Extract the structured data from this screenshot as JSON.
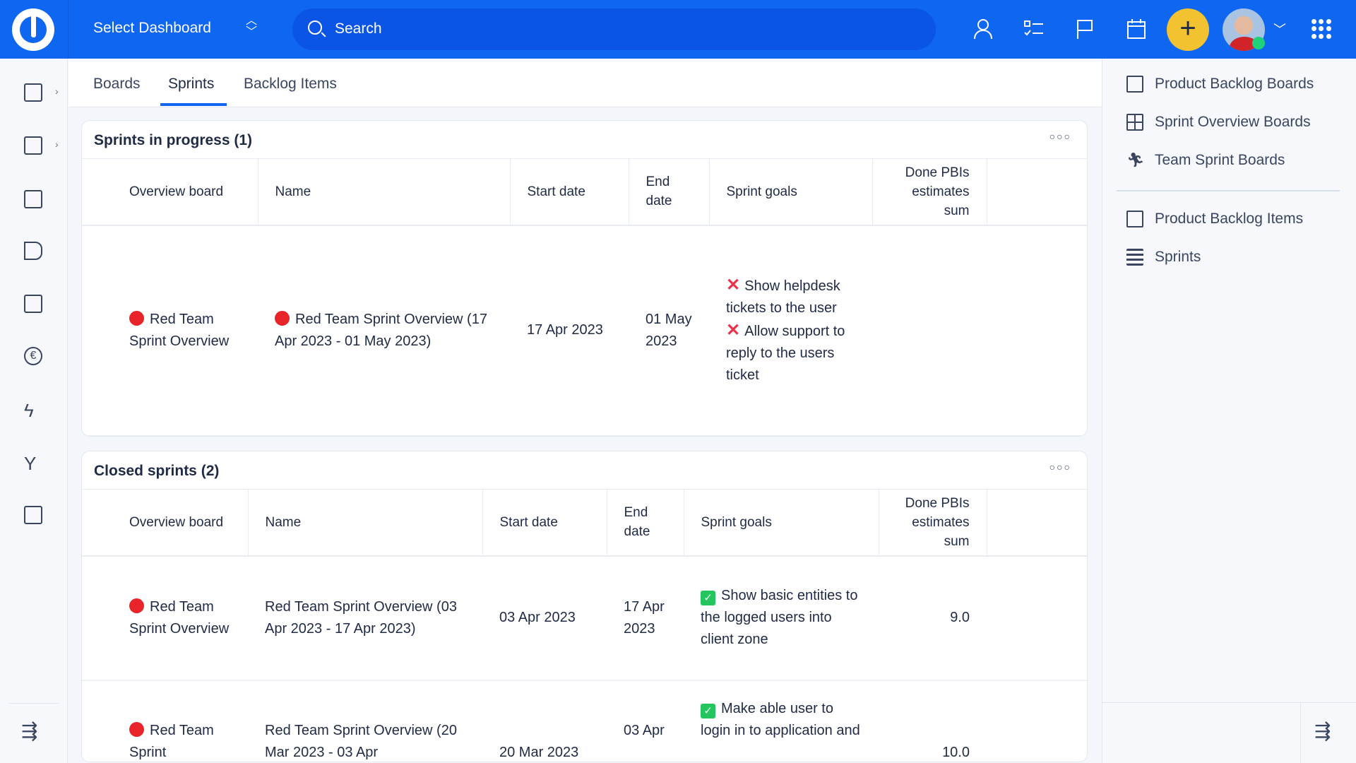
{
  "header": {
    "dashboard_label": "Select Dashboard",
    "search_placeholder": "Search",
    "colors": {
      "bar": "#0f66f0",
      "add_button": "#f2c230",
      "online": "#1fd17a"
    },
    "icons": [
      "user-icon",
      "checklist-icon",
      "flag-icon",
      "calendar-icon",
      "plus-icon",
      "avatar",
      "chevron-down-icon",
      "apps-grid-icon"
    ]
  },
  "sidebar": {
    "icons": [
      "boards-icon",
      "list-tree-icon",
      "calendar-board-icon",
      "play-flag-icon",
      "dashboard-icon",
      "euro-icon",
      "lightning-icon",
      "branch-icon",
      "chart-box-icon",
      "collapse-menu-icon"
    ]
  },
  "tabs": [
    {
      "label": "Boards"
    },
    {
      "label": "Sprints",
      "active": true
    },
    {
      "label": "Backlog Items"
    }
  ],
  "in_progress": {
    "title": "Sprints in progress (1)",
    "columns": [
      "Overview board",
      "Name",
      "Start date",
      "End date",
      "Sprint goals",
      "Done PBIs estimates sum"
    ],
    "rows": [
      {
        "board": "Red Team Sprint Overview",
        "name": "Red Team Sprint Overview (17 Apr 2023 - 01 May 2023)",
        "start": "17 Apr 2023",
        "end": "01 May 2023",
        "goals": [
          {
            "status": "not-done",
            "text": "Show helpdesk tickets to the user"
          },
          {
            "status": "not-done",
            "text": "Allow support to reply to the users ticket"
          }
        ],
        "done": ""
      }
    ]
  },
  "closed": {
    "title": "Closed sprints (2)",
    "columns": [
      "Overview board",
      "Name",
      "Start date",
      "End date",
      "Sprint goals",
      "Done PBIs estimates sum"
    ],
    "rows": [
      {
        "board": "Red Team Sprint Overview",
        "name": "Red Team Sprint Overview (03 Apr 2023 - 17 Apr 2023)",
        "start": "03 Apr 2023",
        "end": "17 Apr 2023",
        "goals": [
          {
            "status": "done",
            "text": "Show basic entities to the logged users into client zone"
          }
        ],
        "done": "9.0"
      },
      {
        "board": "Red Team Sprint",
        "name": "Red Team Sprint Overview (20 Mar 2023 - 03 Apr",
        "start": "20 Mar 2023",
        "end": "03 Apr",
        "goals": [
          {
            "status": "done",
            "text": "Make able user to login in to application and"
          }
        ],
        "done": "10.0"
      }
    ]
  },
  "right_panel": {
    "items": [
      {
        "label": "Product Backlog Boards"
      },
      {
        "label": "Sprint Overview Boards"
      },
      {
        "label": "Team Sprint Boards"
      },
      {
        "label": "Product Backlog Items"
      },
      {
        "label": "Sprints"
      }
    ]
  }
}
